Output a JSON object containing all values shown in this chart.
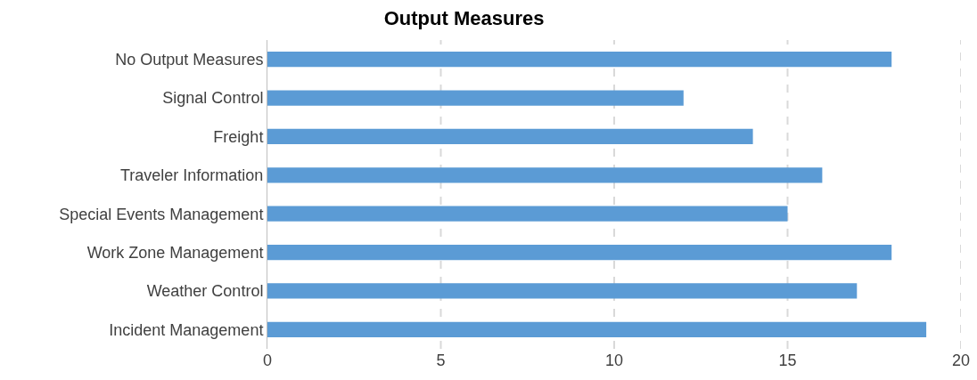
{
  "chart_data": {
    "type": "bar",
    "orientation": "horizontal",
    "title": "Output Measures",
    "categories": [
      "No Output Measures",
      "Signal Control",
      "Freight",
      "Traveler Information",
      "Special Events Management",
      "Work Zone Management",
      "Weather Control",
      "Incident Management"
    ],
    "values": [
      18,
      12,
      14,
      16,
      15,
      18,
      17,
      19
    ],
    "color": "#5b9bd5",
    "xlim": [
      0,
      20
    ],
    "xticks": [
      0,
      5,
      10,
      15,
      20
    ],
    "grid": "x"
  }
}
